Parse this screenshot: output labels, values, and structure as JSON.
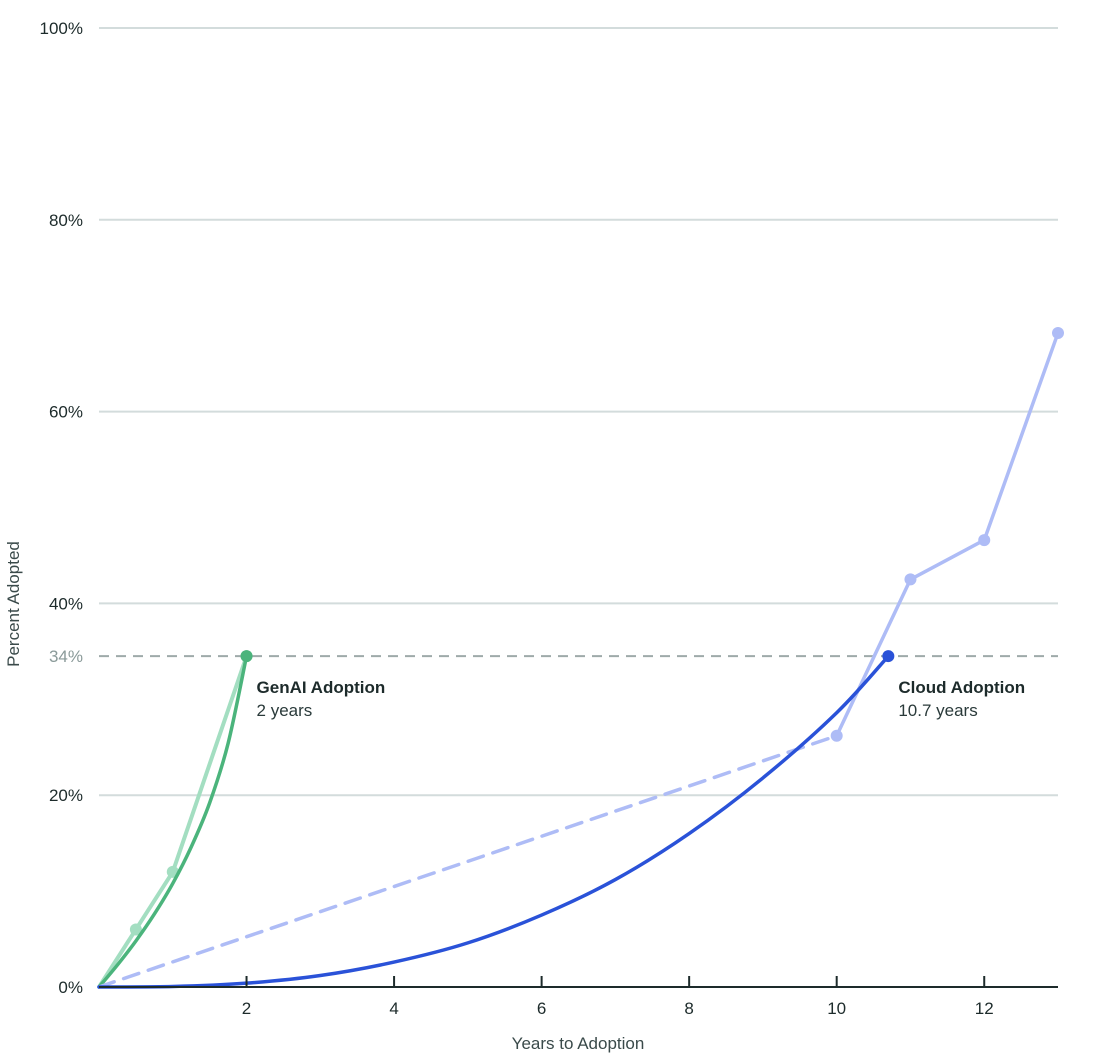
{
  "chart_data": {
    "type": "line",
    "title": "",
    "xlabel": "Years to Adoption",
    "ylabel": "Percent Adopted",
    "xlim": [
      0,
      13
    ],
    "ylim": [
      0,
      100
    ],
    "x_ticks": [
      {
        "value": 2,
        "label": "2"
      },
      {
        "value": 4,
        "label": "4"
      },
      {
        "value": 6,
        "label": "6"
      },
      {
        "value": 8,
        "label": "8"
      },
      {
        "value": 10,
        "label": "10"
      },
      {
        "value": 12,
        "label": "12"
      }
    ],
    "y_ticks": [
      {
        "value": 0,
        "label": "0%"
      },
      {
        "value": 20,
        "label": "20%"
      },
      {
        "value": 40,
        "label": "40%"
      },
      {
        "value": 60,
        "label": "60%"
      },
      {
        "value": 80,
        "label": "80%"
      },
      {
        "value": 100,
        "label": "100%"
      }
    ],
    "grid": true,
    "reference_line": {
      "value": 34.5,
      "label": "34%"
    },
    "series": [
      {
        "key": "genai_observed",
        "style": "line-markers",
        "color": "#a3dec1",
        "points": [
          [
            0,
            0
          ],
          [
            0.5,
            6
          ],
          [
            1,
            12
          ],
          [
            2,
            34.5
          ]
        ]
      },
      {
        "key": "genai_fit",
        "style": "curve",
        "color": "#4bb47c",
        "points": [
          [
            0,
            0
          ],
          [
            0.25,
            2.3
          ],
          [
            0.5,
            4.8
          ],
          [
            0.75,
            7.6
          ],
          [
            1,
            10.8
          ],
          [
            1.25,
            14.6
          ],
          [
            1.5,
            19.2
          ],
          [
            1.75,
            25.4
          ],
          [
            2,
            34.5
          ]
        ],
        "end_marker": true
      },
      {
        "key": "cloud_observed",
        "style": "line-markers",
        "color": "#aebcf6",
        "dashed_to_first": true,
        "points": [
          [
            0,
            0
          ],
          [
            10,
            26.2
          ],
          [
            11,
            42.5
          ],
          [
            12,
            46.6
          ],
          [
            13,
            68.2
          ]
        ]
      },
      {
        "key": "cloud_fit",
        "style": "curve",
        "color": "#2a52d8",
        "points": [
          [
            0,
            0
          ],
          [
            1,
            0.05
          ],
          [
            2,
            0.4
          ],
          [
            3,
            1.2
          ],
          [
            4,
            2.6
          ],
          [
            5,
            4.6
          ],
          [
            6,
            7.5
          ],
          [
            7,
            11.2
          ],
          [
            8,
            16.0
          ],
          [
            9,
            21.8
          ],
          [
            10,
            28.6
          ],
          [
            10.7,
            34.5
          ]
        ],
        "end_marker": true
      }
    ],
    "annotations": [
      {
        "title": "GenAI Adoption",
        "subtitle": "2 years",
        "x": 2,
        "y": 34.5
      },
      {
        "title": "Cloud Adoption",
        "subtitle": "10.7 years",
        "x": 10.7,
        "y": 34.5
      }
    ]
  }
}
